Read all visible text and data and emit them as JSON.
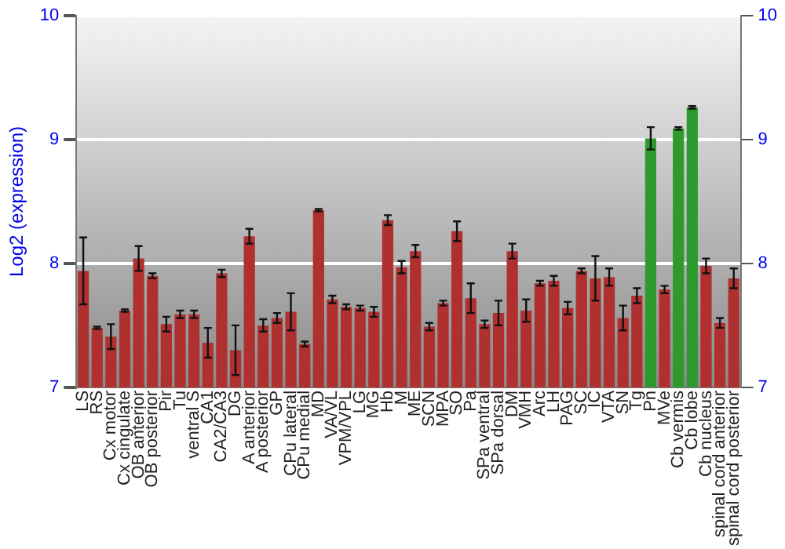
{
  "chart_data": {
    "type": "bar",
    "ylabel": "Log2 (expression)",
    "categories": [
      "LS",
      "RS",
      "Cx motor",
      "Cx cingulate",
      "OB anterior",
      "OB posterior",
      "Pir",
      "Tu",
      "ventral S",
      "CA1",
      "CA2/CA3",
      "DG",
      "A anterior",
      "A posterior",
      "GP",
      "CPu lateral",
      "CPu medial",
      "MD",
      "VA/VL",
      "VPM/VPL",
      "LG",
      "MG",
      "Hb",
      "M",
      "ME",
      "SCN",
      "MPA",
      "SO",
      "Pa",
      "SPa ventral",
      "SPa dorsal",
      "DM",
      "VMH",
      "Arc",
      "LH",
      "PAG",
      "SC",
      "IC",
      "VTA",
      "SN",
      "Tg",
      "Pn",
      "MVe",
      "Cb vermis",
      "Cb lobe",
      "Cb nucleus",
      "spinal cord anterior",
      "spinal cord posterior"
    ],
    "values": [
      7.94,
      7.48,
      7.41,
      7.62,
      8.04,
      7.9,
      7.51,
      7.59,
      7.59,
      7.36,
      7.92,
      7.3,
      8.22,
      7.5,
      7.56,
      7.61,
      7.35,
      8.43,
      7.71,
      7.65,
      7.64,
      7.61,
      8.35,
      7.97,
      8.1,
      7.49,
      7.68,
      8.26,
      7.72,
      7.51,
      7.6,
      8.1,
      7.62,
      7.84,
      7.86,
      7.64,
      7.94,
      7.88,
      7.89,
      7.56,
      7.74,
      9.01,
      7.79,
      9.09,
      9.26,
      7.98,
      7.52,
      7.88
    ],
    "errors": [
      0.27,
      0.01,
      0.1,
      0.01,
      0.1,
      0.02,
      0.06,
      0.03,
      0.03,
      0.12,
      0.03,
      0.2,
      0.06,
      0.05,
      0.04,
      0.15,
      0.02,
      0.01,
      0.03,
      0.02,
      0.02,
      0.04,
      0.04,
      0.05,
      0.05,
      0.03,
      0.02,
      0.08,
      0.12,
      0.03,
      0.1,
      0.06,
      0.09,
      0.02,
      0.04,
      0.05,
      0.02,
      0.18,
      0.07,
      0.1,
      0.06,
      0.09,
      0.03,
      0.01,
      0.01,
      0.06,
      0.04,
      0.08
    ],
    "colors": [
      "#b03030",
      "#b03030",
      "#b03030",
      "#b03030",
      "#b03030",
      "#b03030",
      "#b03030",
      "#b03030",
      "#b03030",
      "#b03030",
      "#b03030",
      "#b03030",
      "#b03030",
      "#b03030",
      "#b03030",
      "#b03030",
      "#b03030",
      "#b03030",
      "#b03030",
      "#b03030",
      "#b03030",
      "#b03030",
      "#b03030",
      "#b03030",
      "#b03030",
      "#b03030",
      "#b03030",
      "#b03030",
      "#b03030",
      "#b03030",
      "#b03030",
      "#b03030",
      "#b03030",
      "#b03030",
      "#b03030",
      "#b03030",
      "#b03030",
      "#b03030",
      "#b03030",
      "#b03030",
      "#b03030",
      "#2e9a2e",
      "#b03030",
      "#2e9a2e",
      "#2e9a2e",
      "#b03030",
      "#b03030",
      "#b03030"
    ],
    "ylim": [
      7,
      10
    ],
    "yticks": [
      7,
      8,
      9,
      10
    ],
    "y2lim": [
      7,
      10
    ],
    "y2ticks": [
      7,
      8,
      9,
      10
    ],
    "grid": "y"
  }
}
